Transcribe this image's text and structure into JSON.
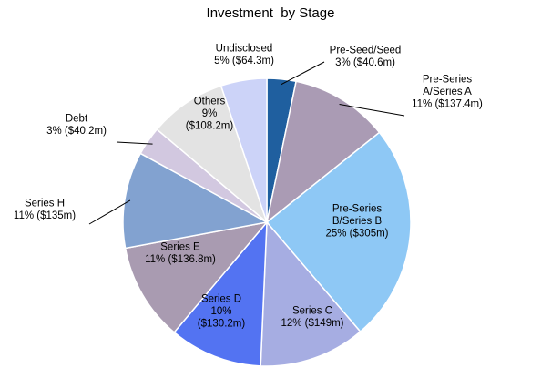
{
  "chart_data": {
    "type": "pie",
    "title": "Investment  by Stage",
    "slices": [
      {
        "label": "Pre-Seed/Seed",
        "percent": "3%",
        "value": 40.6,
        "value_label": "($40.6m)",
        "color": "#1f5f9f"
      },
      {
        "label": "Pre-Series A/Series A",
        "percent": "11%",
        "value": 137.4,
        "value_label": "($137.4m)",
        "color": "#aa9bb4"
      },
      {
        "label": "Pre-Series B/Series B",
        "percent": "25%",
        "value": 305,
        "value_label": "($305m)",
        "color": "#8ec8f5"
      },
      {
        "label": "Series C",
        "percent": "12%",
        "value": 149,
        "value_label": "($149m)",
        "color": "#a6ade2"
      },
      {
        "label": "Series D",
        "percent": "10%",
        "value": 130.2,
        "value_label": "($130.2m)",
        "color": "#5373f2"
      },
      {
        "label": "Series E",
        "percent": "11%",
        "value": 136.8,
        "value_label": "($136.8m)",
        "color": "#a99bb1"
      },
      {
        "label": "Series H",
        "percent": "11%",
        "value": 135,
        "value_label": "($135m)",
        "color": "#82a2d0"
      },
      {
        "label": "Debt",
        "percent": "3%",
        "value": 40.2,
        "value_label": "($40.2m)",
        "color": "#d2c8e0"
      },
      {
        "label": "Others",
        "percent": "9%",
        "value": 108.2,
        "value_label": "($108.2m)",
        "color": "#e3e3e3"
      },
      {
        "label": "Undisclosed",
        "percent": "5%",
        "value": 64.3,
        "value_label": "($64.3m)",
        "color": "#ccd3f8"
      }
    ],
    "slice_labels": [
      [
        "Pre-Seed/Seed",
        "3% ($40.6m)"
      ],
      [
        "Pre-Series",
        "A/Series A",
        "11% ($137.4m)"
      ],
      [
        "Pre-Series",
        "B/Series B",
        "25% ($305m)"
      ],
      [
        "Series C",
        "12% ($149m)"
      ],
      [
        "Series D",
        "10%",
        "($130.2m)"
      ],
      [
        "Series E",
        "11% ($136.8m)"
      ],
      [
        "Series H",
        "11% ($135m)"
      ],
      [
        "Debt",
        "3% ($40.2m)"
      ],
      [
        "Others",
        "9%",
        "($108.2m)"
      ],
      [
        "Undisclosed",
        "5% ($64.3m)"
      ]
    ]
  }
}
